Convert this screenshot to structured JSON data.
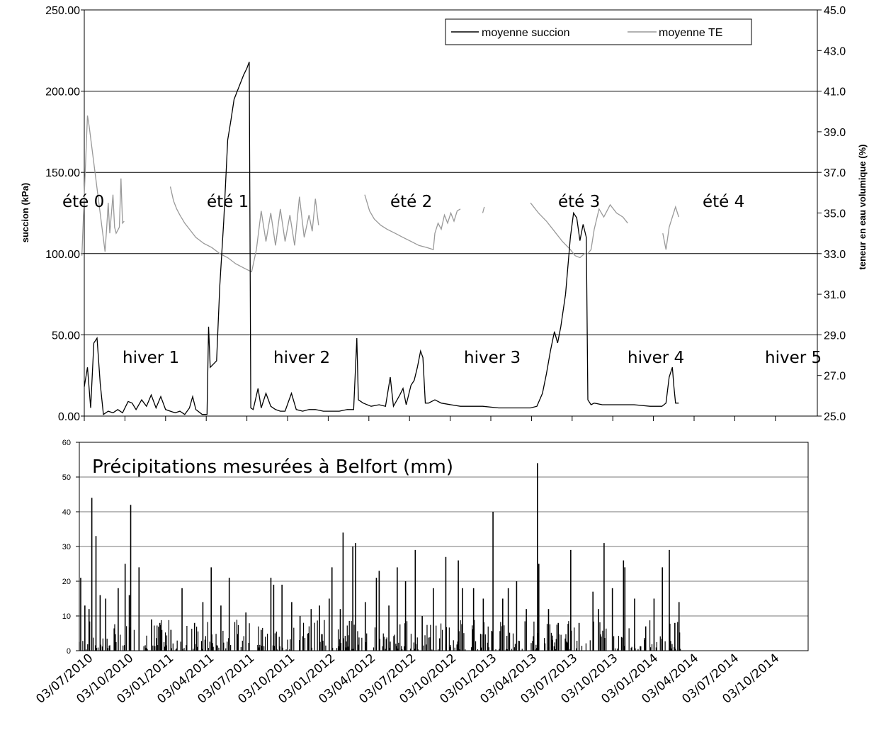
{
  "chart_data": [
    {
      "type": "line",
      "ylabel": "succion (kPa)",
      "y2label": "teneur en eau volumique (%)",
      "ylim": [
        0,
        250
      ],
      "y2lim": [
        25,
        45
      ],
      "yticks": [
        "0.00",
        "50.00",
        "100.00",
        "150.00",
        "200.00",
        "250.00"
      ],
      "y2ticks": [
        "25.0",
        "27.0",
        "29.0",
        "31.0",
        "33.0",
        "35.0",
        "37.0",
        "39.0",
        "41.0",
        "43.0",
        "45.0"
      ],
      "grid": true,
      "legend": {
        "position": "top-right",
        "entries": [
          "moyenne succion",
          "moyenne TE"
        ]
      },
      "annotations": {
        "summers": [
          "été 0",
          "été 1",
          "été 2",
          "été 3",
          "été 4"
        ],
        "winters": [
          "hiver 1",
          "hiver 2",
          "hiver 3",
          "hiver 4",
          "hiver 5"
        ]
      },
      "series": [
        {
          "name": "moyenne succion",
          "color": "#000000",
          "axis": "left",
          "points": [
            [
              0,
              18
            ],
            [
              4,
              30
            ],
            [
              8,
              5
            ],
            [
              12,
              45
            ],
            [
              16,
              48
            ],
            [
              20,
              20
            ],
            [
              24,
              1
            ],
            [
              30,
              3
            ],
            [
              36,
              2
            ],
            [
              42,
              4
            ],
            [
              48,
              2
            ],
            [
              55,
              9
            ],
            [
              60,
              8
            ],
            [
              65,
              4
            ],
            [
              72,
              10
            ],
            [
              78,
              6
            ],
            [
              84,
              13
            ],
            [
              90,
              5
            ],
            [
              96,
              12
            ],
            [
              102,
              4
            ],
            [
              108,
              3
            ],
            [
              114,
              2
            ],
            [
              120,
              3
            ],
            [
              126,
              1
            ],
            [
              132,
              5
            ],
            [
              136,
              12
            ],
            [
              140,
              4
            ],
            [
              148,
              1
            ],
            [
              154,
              1
            ],
            [
              156,
              55
            ],
            [
              158,
              30
            ],
            [
              162,
              32
            ],
            [
              166,
              34
            ],
            [
              170,
              80
            ],
            [
              175,
              120
            ],
            [
              180,
              170
            ],
            [
              184,
              182
            ],
            [
              188,
              195
            ],
            [
              192,
              200
            ],
            [
              196,
              205
            ],
            [
              200,
              210
            ],
            [
              204,
              214
            ],
            [
              207,
              218
            ],
            [
              209,
              5
            ],
            [
              212,
              4
            ],
            [
              218,
              17
            ],
            [
              222,
              5
            ],
            [
              228,
              14
            ],
            [
              234,
              6
            ],
            [
              240,
              4
            ],
            [
              246,
              3
            ],
            [
              252,
              3
            ],
            [
              260,
              14
            ],
            [
              266,
              4
            ],
            [
              274,
              3
            ],
            [
              282,
              4
            ],
            [
              290,
              4
            ],
            [
              300,
              3
            ],
            [
              310,
              3
            ],
            [
              320,
              3
            ],
            [
              330,
              4
            ],
            [
              338,
              4
            ],
            [
              342,
              48
            ],
            [
              344,
              10
            ],
            [
              350,
              8
            ],
            [
              360,
              6
            ],
            [
              370,
              7
            ],
            [
              378,
              6
            ],
            [
              384,
              24
            ],
            [
              388,
              6
            ],
            [
              396,
              13
            ],
            [
              400,
              17
            ],
            [
              404,
              7
            ],
            [
              410,
              19
            ],
            [
              414,
              22
            ],
            [
              418,
              30
            ],
            [
              422,
              40
            ],
            [
              425,
              36
            ],
            [
              428,
              8
            ],
            [
              432,
              8
            ],
            [
              440,
              10
            ],
            [
              448,
              8
            ],
            [
              460,
              7
            ],
            [
              472,
              6
            ],
            [
              476,
              6
            ],
            [
              483,
              6
            ],
            [
              500,
              6
            ],
            [
              520,
              5
            ],
            [
              540,
              5
            ],
            [
              560,
              5
            ],
            [
              568,
              6
            ],
            [
              575,
              14
            ],
            [
              580,
              26
            ],
            [
              585,
              40
            ],
            [
              590,
              52
            ],
            [
              594,
              45
            ],
            [
              598,
              55
            ],
            [
              604,
              75
            ],
            [
              610,
              110
            ],
            [
              614,
              125
            ],
            [
              618,
              122
            ],
            [
              622,
              108
            ],
            [
              626,
              118
            ],
            [
              630,
              110
            ],
            [
              632,
              10
            ],
            [
              636,
              7
            ],
            [
              640,
              8
            ],
            [
              650,
              7
            ],
            [
              670,
              7
            ],
            [
              690,
              7
            ],
            [
              710,
              6
            ],
            [
              725,
              6
            ],
            [
              730,
              8
            ],
            [
              734,
              24
            ],
            [
              738,
              30
            ],
            [
              740,
              18
            ],
            [
              742,
              8
            ],
            [
              746,
              8
            ]
          ]
        },
        {
          "name": "moyenne TE",
          "color": "#999999",
          "axis": "right",
          "points": [
            [
              -3,
              32.9
            ],
            [
              4,
              39.8
            ],
            [
              6,
              39.3
            ],
            [
              26,
              33.1
            ],
            [
              28,
              34.2
            ],
            [
              30,
              35.5
            ],
            [
              32,
              34.0
            ],
            [
              36,
              35.9
            ],
            [
              38,
              34.3
            ],
            [
              40,
              34.0
            ],
            [
              44,
              34.3
            ],
            [
              46,
              36.7
            ],
            [
              48,
              34.5
            ],
            [
              50,
              34.6
            ],
            [
              108,
              36.3
            ],
            [
              112,
              35.6
            ],
            [
              116,
              35.2
            ],
            [
              120,
              34.9
            ],
            [
              126,
              34.5
            ],
            [
              132,
              34.2
            ],
            [
              140,
              33.8
            ],
            [
              150,
              33.5
            ],
            [
              160,
              33.3
            ],
            [
              170,
              33.0
            ],
            [
              180,
              32.8
            ],
            [
              190,
              32.5
            ],
            [
              200,
              32.3
            ],
            [
              210,
              32.1
            ],
            [
              216,
              33.2
            ],
            [
              222,
              35.1
            ],
            [
              228,
              33.6
            ],
            [
              234,
              35.0
            ],
            [
              240,
              33.4
            ],
            [
              246,
              35.2
            ],
            [
              252,
              33.6
            ],
            [
              258,
              34.9
            ],
            [
              264,
              33.4
            ],
            [
              270,
              35.8
            ],
            [
              276,
              33.8
            ],
            [
              282,
              34.9
            ],
            [
              286,
              34.1
            ],
            [
              290,
              35.7
            ],
            [
              294,
              34.4
            ],
            [
              352,
              35.9
            ],
            [
              358,
              35.1
            ],
            [
              364,
              34.7
            ],
            [
              372,
              34.4
            ],
            [
              380,
              34.2
            ],
            [
              390,
              34.0
            ],
            [
              400,
              33.8
            ],
            [
              410,
              33.6
            ],
            [
              420,
              33.4
            ],
            [
              430,
              33.3
            ],
            [
              438,
              33.2
            ],
            [
              440,
              34.0
            ],
            [
              444,
              34.5
            ],
            [
              448,
              34.2
            ],
            [
              452,
              34.9
            ],
            [
              456,
              34.5
            ],
            [
              460,
              35.0
            ],
            [
              464,
              34.6
            ],
            [
              468,
              35.1
            ],
            [
              472,
              35.2
            ],
            [
              500,
              35.0
            ],
            [
              502,
              35.3
            ],
            [
              560,
              35.5
            ],
            [
              570,
              35.0
            ],
            [
              580,
              34.6
            ],
            [
              590,
              34.1
            ],
            [
              600,
              33.6
            ],
            [
              610,
              33.2
            ],
            [
              616,
              32.9
            ],
            [
              622,
              32.8
            ],
            [
              628,
              33.0
            ],
            [
              632,
              33.0
            ],
            [
              636,
              33.2
            ],
            [
              640,
              34.2
            ],
            [
              646,
              35.2
            ],
            [
              652,
              34.8
            ],
            [
              660,
              35.4
            ],
            [
              668,
              35.0
            ],
            [
              676,
              34.8
            ],
            [
              682,
              34.5
            ],
            [
              726,
              34.0
            ],
            [
              730,
              33.2
            ],
            [
              734,
              34.3
            ],
            [
              738,
              34.8
            ],
            [
              742,
              35.3
            ],
            [
              746,
              34.8
            ]
          ]
        }
      ]
    },
    {
      "type": "bar",
      "title": "Précipitations mesurées à Belfort (mm)",
      "ylim": [
        0,
        60
      ],
      "yticks": [
        "0",
        "10",
        "20",
        "30",
        "40",
        "50",
        "60"
      ],
      "grid": true,
      "xticks": [
        "03/07/2010",
        "03/10/2010",
        "03/01/2011",
        "03/04/2011",
        "03/07/2011",
        "03/10/2011",
        "03/01/2012",
        "03/04/2012",
        "03/07/2012",
        "03/10/2012",
        "03/01/2013",
        "03/04/2013",
        "03/07/2013",
        "03/10/2013",
        "03/01/2014",
        "03/04/2014",
        "03/07/2014",
        "03/10/2014"
      ],
      "peaks": [
        [
          2,
          21
        ],
        [
          8,
          13
        ],
        [
          14,
          12
        ],
        [
          18,
          44
        ],
        [
          24,
          33
        ],
        [
          30,
          16
        ],
        [
          38,
          15
        ],
        [
          56,
          18
        ],
        [
          66,
          25
        ],
        [
          72,
          16
        ],
        [
          74,
          42
        ],
        [
          86,
          24
        ],
        [
          104,
          9
        ],
        [
          116,
          8
        ],
        [
          132,
          6
        ],
        [
          148,
          18
        ],
        [
          166,
          8
        ],
        [
          178,
          14
        ],
        [
          190,
          24
        ],
        [
          204,
          13
        ],
        [
          216,
          21
        ],
        [
          240,
          11
        ],
        [
          262,
          6
        ],
        [
          276,
          21
        ],
        [
          280,
          19
        ],
        [
          292,
          19
        ],
        [
          306,
          14
        ],
        [
          318,
          10
        ],
        [
          334,
          12
        ],
        [
          346,
          13
        ],
        [
          360,
          15
        ],
        [
          364,
          24
        ],
        [
          376,
          12
        ],
        [
          380,
          34
        ],
        [
          394,
          30
        ],
        [
          398,
          31
        ],
        [
          412,
          14
        ],
        [
          428,
          21
        ],
        [
          432,
          23
        ],
        [
          446,
          13
        ],
        [
          458,
          24
        ],
        [
          470,
          20
        ],
        [
          484,
          29
        ],
        [
          494,
          10
        ],
        [
          510,
          18
        ],
        [
          528,
          27
        ],
        [
          546,
          26
        ],
        [
          552,
          18
        ],
        [
          568,
          18
        ],
        [
          582,
          15
        ],
        [
          596,
          40
        ],
        [
          610,
          15
        ],
        [
          618,
          18
        ],
        [
          630,
          20
        ],
        [
          644,
          12
        ],
        [
          660,
          54
        ],
        [
          662,
          25
        ],
        [
          676,
          12
        ],
        [
          690,
          8
        ],
        [
          708,
          29
        ],
        [
          720,
          8
        ],
        [
          740,
          17
        ],
        [
          748,
          12
        ],
        [
          756,
          31
        ],
        [
          768,
          18
        ],
        [
          784,
          26
        ],
        [
          786,
          24
        ],
        [
          800,
          15
        ],
        [
          816,
          7
        ],
        [
          828,
          15
        ],
        [
          840,
          24
        ],
        [
          850,
          29
        ],
        [
          858,
          8
        ],
        [
          864,
          14
        ]
      ]
    }
  ]
}
